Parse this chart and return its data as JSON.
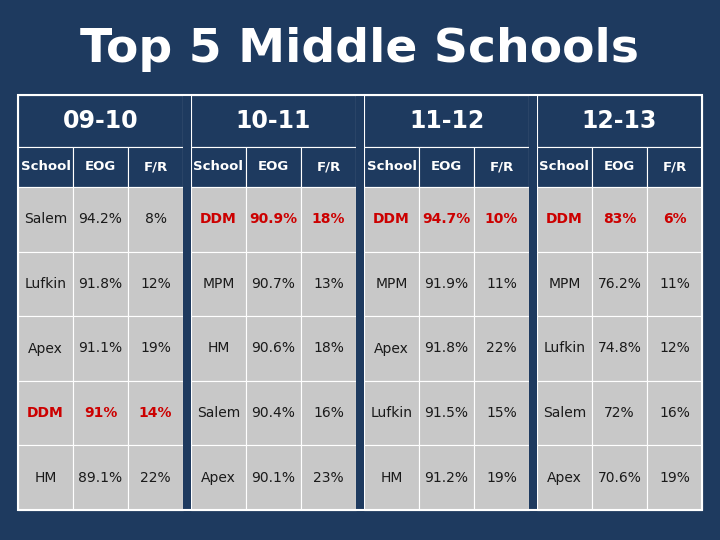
{
  "title": "Top 5 Middle Schools",
  "title_color": "#FFFFFF",
  "bg_color": "#1e3a5f",
  "header_bg": "#1e3a5f",
  "header_color": "#FFFFFF",
  "subheader_color": "#FFFFFF",
  "cell_bg": "#c8c8c8",
  "cell_text_normal": "#1a1a1a",
  "cell_text_red": "#cc0000",
  "year_groups": [
    "09-10",
    "10-11",
    "11-12",
    "12-13"
  ],
  "col_headers": [
    "School",
    "EOG",
    "F/R"
  ],
  "rows": [
    [
      [
        "Salem",
        "94.2%",
        "8%",
        "normal"
      ],
      [
        "DDM",
        "90.9%",
        "18%",
        "red"
      ],
      [
        "DDM",
        "94.7%",
        "10%",
        "red"
      ],
      [
        "DDM",
        "83%",
        "6%",
        "red"
      ]
    ],
    [
      [
        "Lufkin",
        "91.8%",
        "12%",
        "normal"
      ],
      [
        "MPM",
        "90.7%",
        "13%",
        "normal"
      ],
      [
        "MPM",
        "91.9%",
        "11%",
        "normal"
      ],
      [
        "MPM",
        "76.2%",
        "11%",
        "normal"
      ]
    ],
    [
      [
        "Apex",
        "91.1%",
        "19%",
        "normal"
      ],
      [
        "HM",
        "90.6%",
        "18%",
        "normal"
      ],
      [
        "Apex",
        "91.8%",
        "22%",
        "normal"
      ],
      [
        "Lufkin",
        "74.8%",
        "12%",
        "normal"
      ]
    ],
    [
      [
        "DDM",
        "91%",
        "14%",
        "red"
      ],
      [
        "Salem",
        "90.4%",
        "16%",
        "normal"
      ],
      [
        "Lufkin",
        "91.5%",
        "15%",
        "normal"
      ],
      [
        "Salem",
        "72%",
        "16%",
        "normal"
      ]
    ],
    [
      [
        "HM",
        "89.1%",
        "22%",
        "normal"
      ],
      [
        "Apex",
        "90.1%",
        "23%",
        "normal"
      ],
      [
        "HM",
        "91.2%",
        "19%",
        "normal"
      ],
      [
        "Apex",
        "70.6%",
        "19%",
        "normal"
      ]
    ]
  ]
}
